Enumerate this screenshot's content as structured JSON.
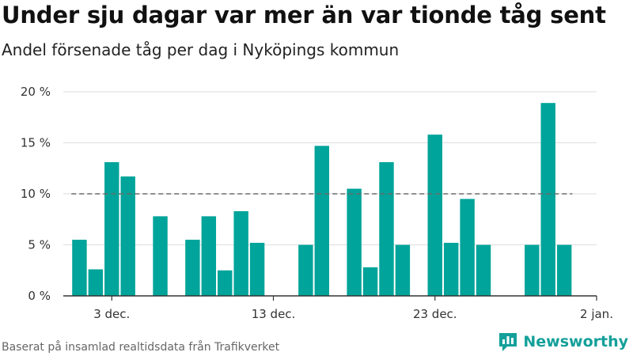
{
  "chart_data": {
    "type": "bar",
    "title": "Under sju dagar var mer än var tionde tåg sent",
    "subtitle": "Andel försenade tåg per dag i Nyköpings kommun",
    "xlabel": "",
    "ylabel": "",
    "ylim": [
      0,
      20
    ],
    "y_ticks": [
      0,
      5,
      10,
      15,
      20
    ],
    "y_tick_labels": [
      "0 %",
      "5 %",
      "10 %",
      "15 %",
      "20 %"
    ],
    "x_tick_labels": [
      "3 dec.",
      "13 dec.",
      "23 dec.",
      "2 jan."
    ],
    "x_tick_dates": [
      "2023-12-03",
      "2023-12-13",
      "2023-12-23",
      "2024-01-02"
    ],
    "x_range": [
      "2023-11-30",
      "2024-01-02"
    ],
    "dates": [
      "2023-12-01",
      "2023-12-02",
      "2023-12-03",
      "2023-12-04",
      "2023-12-05",
      "2023-12-06",
      "2023-12-07",
      "2023-12-08",
      "2023-12-09",
      "2023-12-10",
      "2023-12-11",
      "2023-12-12",
      "2023-12-13",
      "2023-12-14",
      "2023-12-15",
      "2023-12-16",
      "2023-12-17",
      "2023-12-18",
      "2023-12-19",
      "2023-12-20",
      "2023-12-21",
      "2023-12-22",
      "2023-12-23",
      "2023-12-24",
      "2023-12-25",
      "2023-12-26",
      "2023-12-27",
      "2023-12-28",
      "2023-12-29",
      "2023-12-30",
      "2023-12-31"
    ],
    "values": [
      5.5,
      2.6,
      13.1,
      11.7,
      0,
      7.8,
      0,
      5.5,
      7.8,
      2.5,
      8.3,
      5.2,
      0,
      0,
      5.0,
      14.7,
      0,
      10.5,
      2.8,
      13.1,
      5.0,
      0,
      15.8,
      5.2,
      9.5,
      5.0,
      0,
      0,
      5.0,
      18.9,
      5.0
    ],
    "reference_line": {
      "value": 10,
      "style": "dashed"
    },
    "bar_color": "#00a49a",
    "grid": true
  },
  "source": "Baserat på insamlad realtidsdata från Trafikverket",
  "brand": {
    "name": "Newsworthy",
    "icon": "newsworthy-logo-icon",
    "color": "#14a09a"
  }
}
